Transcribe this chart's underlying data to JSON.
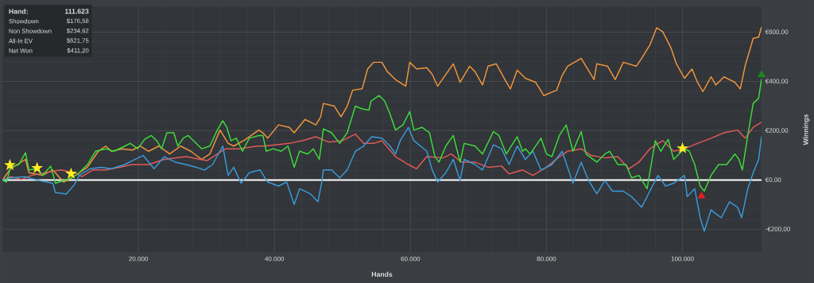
{
  "chart_data": {
    "type": "line",
    "xlabel": "Hands",
    "ylabel": "Winnings",
    "xlim": [
      0,
      111623
    ],
    "ylim": [
      -295,
      705
    ],
    "xticks": [
      {
        "value": 20000,
        "label": "20.000"
      },
      {
        "value": 40000,
        "label": "40.000"
      },
      {
        "value": 60000,
        "label": "60.000"
      },
      {
        "value": 80000,
        "label": "80.000"
      },
      {
        "value": 100000,
        "label": "100.000"
      }
    ],
    "yticks": [
      {
        "value": -200,
        "label": "-€200,00"
      },
      {
        "value": 0,
        "label": "€0,00"
      },
      {
        "value": 200,
        "label": "€200,00"
      },
      {
        "value": 400,
        "label": "€400,00"
      },
      {
        "value": 600,
        "label": "€600,00"
      }
    ],
    "grid": true,
    "marker": "none",
    "line_style": "solid",
    "ref_lines": [
      {
        "axis": "y",
        "value": 0,
        "color": "#ffffff"
      }
    ],
    "annotations": [
      "Hand:",
      "111.623",
      "Showdown",
      "$176,58",
      "Non Showdown",
      "$234,62",
      "All-In EV",
      "$621,75",
      "Net Won",
      "$411,20"
    ],
    "series": [
      {
        "color": "#f0963c",
        "x": [
          0,
          1200,
          3400,
          3900,
          5900,
          7400,
          9000,
          10200,
          12500,
          14100,
          15200,
          16000,
          17600,
          19100,
          20300,
          21500,
          23000,
          24600,
          26200,
          27700,
          29300,
          30500,
          32000,
          33200,
          34000,
          35500,
          37700,
          38300,
          39000,
          40600,
          42200,
          42900,
          44500,
          46100,
          46800,
          47200,
          48800,
          49800,
          50700,
          51500,
          52900,
          53700,
          54600,
          55800,
          56600,
          57800,
          59300,
          59900,
          60900,
          62400,
          63200,
          64000,
          65200,
          66300,
          67300,
          68700,
          69500,
          70600,
          71400,
          72600,
          74100,
          74700,
          75700,
          76900,
          78400,
          79600,
          81500,
          82300,
          83100,
          85100,
          87000,
          87400,
          89000,
          90100,
          91300,
          93200,
          94000,
          95200,
          96200,
          97100,
          98300,
          99100,
          100300,
          101400,
          102200,
          103000,
          104200,
          104900,
          106100,
          107700,
          108500,
          109200,
          110400,
          111200,
          111623
        ],
        "values": [
          0,
          46,
          84,
          30,
          19,
          41,
          -8,
          9,
          52,
          117,
          138,
          117,
          127,
          122,
          138,
          117,
          138,
          106,
          138,
          117,
          84,
          106,
          203,
          149,
          138,
          160,
          203,
          192,
          170,
          224,
          214,
          192,
          246,
          224,
          257,
          311,
          300,
          257,
          300,
          365,
          370,
          451,
          478,
          478,
          440,
          408,
          381,
          478,
          451,
          456,
          429,
          381,
          429,
          472,
          397,
          462,
          440,
          386,
          462,
          472,
          397,
          370,
          446,
          413,
          397,
          343,
          365,
          424,
          462,
          494,
          408,
          472,
          462,
          408,
          478,
          462,
          494,
          548,
          618,
          602,
          537,
          472,
          413,
          451,
          397,
          359,
          419,
          386,
          419,
          397,
          370,
          462,
          575,
          580,
          622
        ]
      },
      {
        "color": "#e05a5a",
        "x": [
          0,
          1200,
          2800,
          4300,
          6300,
          8600,
          10600,
          11700,
          13300,
          15200,
          17200,
          19100,
          21500,
          23800,
          27000,
          30100,
          32800,
          34800,
          37500,
          38300,
          40200,
          42200,
          44100,
          46100,
          48000,
          50000,
          51900,
          53100,
          54600,
          55800,
          57800,
          59700,
          60900,
          62400,
          64800,
          66000,
          67500,
          69500,
          71400,
          73400,
          74500,
          76500,
          78000,
          80000,
          81900,
          83100,
          85100,
          86600,
          88600,
          90500,
          92100,
          93600,
          95200,
          97100,
          98700,
          100300,
          102200,
          104200,
          106100,
          108100,
          109200,
          110400,
          111623
        ],
        "values": [
          0,
          14,
          3,
          19,
          30,
          41,
          30,
          14,
          41,
          41,
          52,
          63,
          63,
          84,
          95,
          79,
          127,
          127,
          138,
          138,
          143,
          149,
          160,
          176,
          154,
          160,
          187,
          149,
          149,
          160,
          95,
          63,
          46,
          95,
          90,
          106,
          73,
          73,
          52,
          57,
          25,
          41,
          19,
          52,
          95,
          117,
          127,
          100,
          90,
          95,
          46,
          73,
          127,
          160,
          117,
          127,
          149,
          170,
          192,
          203,
          170,
          214,
          235
        ]
      },
      {
        "color": "#3a9ad9",
        "x": [
          0,
          1200,
          3200,
          5500,
          7400,
          7800,
          9400,
          10600,
          11300,
          12900,
          14500,
          16000,
          18000,
          19100,
          20700,
          22300,
          23800,
          25400,
          27000,
          28500,
          29700,
          30900,
          32400,
          33200,
          34000,
          35100,
          36300,
          37900,
          39000,
          40600,
          41800,
          42900,
          43700,
          45300,
          46400,
          47000,
          47200,
          48400,
          49600,
          50700,
          51900,
          53100,
          54300,
          55800,
          57000,
          57800,
          58500,
          59700,
          60500,
          62400,
          63200,
          64000,
          65200,
          66300,
          67300,
          67900,
          69500,
          70600,
          72200,
          73400,
          74500,
          75700,
          76900,
          78000,
          79200,
          80800,
          82300,
          83900,
          85100,
          86200,
          87400,
          88600,
          89700,
          91300,
          92500,
          94000,
          95200,
          96400,
          97500,
          98700,
          100300,
          100700,
          101800,
          102600,
          103200,
          104200,
          105700,
          106900,
          108100,
          108700,
          109600,
          110400,
          111200,
          111623
        ],
        "values": [
          0,
          9,
          14,
          -2,
          -13,
          -51,
          -56,
          -18,
          19,
          46,
          52,
          46,
          63,
          79,
          100,
          46,
          95,
          73,
          63,
          52,
          41,
          63,
          138,
          19,
          52,
          -13,
          30,
          41,
          -8,
          -24,
          -8,
          -99,
          -35,
          -56,
          -88,
          -2,
          41,
          41,
          9,
          41,
          117,
          138,
          176,
          170,
          138,
          106,
          160,
          214,
          160,
          117,
          41,
          -8,
          30,
          84,
          -2,
          84,
          63,
          41,
          143,
          127,
          63,
          138,
          84,
          117,
          41,
          63,
          117,
          -13,
          73,
          -2,
          -56,
          -2,
          -45,
          -45,
          -67,
          -110,
          -45,
          19,
          -24,
          -13,
          19,
          -67,
          -35,
          -153,
          -207,
          -121,
          -153,
          -88,
          -110,
          -153,
          -35,
          30,
          84,
          177
        ]
      },
      {
        "color": "#3ddc3d",
        "x": [
          0,
          600,
          1200,
          2400,
          3400,
          3900,
          5100,
          5900,
          7100,
          7800,
          9000,
          10200,
          11300,
          12500,
          13700,
          15200,
          16400,
          18000,
          18800,
          19900,
          20900,
          21900,
          22700,
          23400,
          24200,
          25200,
          25800,
          26600,
          27300,
          28100,
          29300,
          30500,
          31600,
          32400,
          33000,
          33600,
          34400,
          35300,
          36300,
          37700,
          38300,
          38800,
          39800,
          41000,
          42000,
          42900,
          43700,
          44900,
          45700,
          46600,
          47200,
          48400,
          49600,
          50700,
          51900,
          52900,
          53900,
          54200,
          55400,
          56200,
          57000,
          57800,
          58900,
          59900,
          60500,
          61700,
          62800,
          63600,
          64200,
          65200,
          66300,
          67300,
          67900,
          69500,
          70600,
          72200,
          73000,
          74100,
          75700,
          76500,
          76900,
          77600,
          79200,
          80000,
          80800,
          81900,
          82900,
          83900,
          85100,
          85800,
          87400,
          88600,
          89300,
          90500,
          91700,
          92500,
          93600,
          94800,
          96000,
          96800,
          97900,
          98700,
          99900,
          100300,
          101000,
          101800,
          102600,
          103200,
          104200,
          105300,
          106500,
          107700,
          108300,
          108800,
          109600,
          110400,
          111200,
          111623
        ],
        "values": [
          0,
          -8,
          52,
          63,
          111,
          41,
          46,
          19,
          57,
          -13,
          -2,
          9,
          30,
          63,
          117,
          127,
          117,
          138,
          149,
          127,
          165,
          181,
          160,
          127,
          192,
          192,
          138,
          170,
          181,
          160,
          127,
          138,
          203,
          241,
          214,
          160,
          170,
          117,
          170,
          181,
          181,
          117,
          127,
          117,
          138,
          52,
          117,
          106,
          127,
          84,
          208,
          192,
          149,
          192,
          300,
          289,
          284,
          321,
          343,
          321,
          268,
          203,
          224,
          278,
          203,
          214,
          192,
          95,
          73,
          138,
          181,
          73,
          149,
          138,
          106,
          197,
          181,
          106,
          176,
          117,
          127,
          106,
          170,
          106,
          95,
          181,
          224,
          117,
          197,
          106,
          73,
          106,
          117,
          63,
          63,
          9,
          19,
          -35,
          160,
          117,
          165,
          84,
          117,
          127,
          117,
          63,
          -24,
          -45,
          19,
          63,
          63,
          106,
          84,
          41,
          181,
          311,
          332,
          411
        ]
      },
      {
        "type": "scatter",
        "marker": "star",
        "color": "#ffee22",
        "x": [
          1100,
          5100,
          10100,
          100000
        ],
        "values": [
          61,
          49,
          26,
          129
        ]
      },
      {
        "type": "scatter",
        "marker": "triangle",
        "color": "#e02020",
        "x": [
          102800
        ],
        "values": [
          -65
        ]
      },
      {
        "type": "scatter",
        "marker": "triangle",
        "color": "#1a8a1a",
        "x": [
          111623
        ],
        "values": [
          427
        ]
      }
    ]
  }
}
